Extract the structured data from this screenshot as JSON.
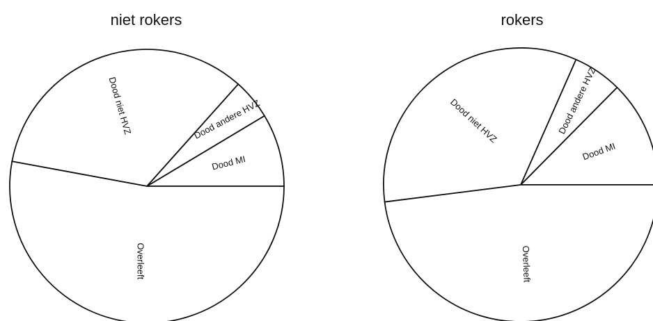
{
  "chart_data": [
    {
      "type": "pie",
      "title": "niet rokers",
      "slices": [
        {
          "label": "Dood MI",
          "value": 8.6
        },
        {
          "label": "Dood andere HVZ",
          "value": 4.8
        },
        {
          "label": "Dood niet HVZ",
          "value": 33.7
        },
        {
          "label": "Overleeft",
          "value": 52.9
        }
      ]
    },
    {
      "type": "pie",
      "title": "rokers",
      "slices": [
        {
          "label": "Dood MI",
          "value": 12.6
        },
        {
          "label": "Dood andere HVZ",
          "value": 5.8
        },
        {
          "label": "Dood niet HVZ",
          "value": 33.6
        },
        {
          "label": "Overleeft",
          "value": 48.0
        }
      ]
    }
  ]
}
